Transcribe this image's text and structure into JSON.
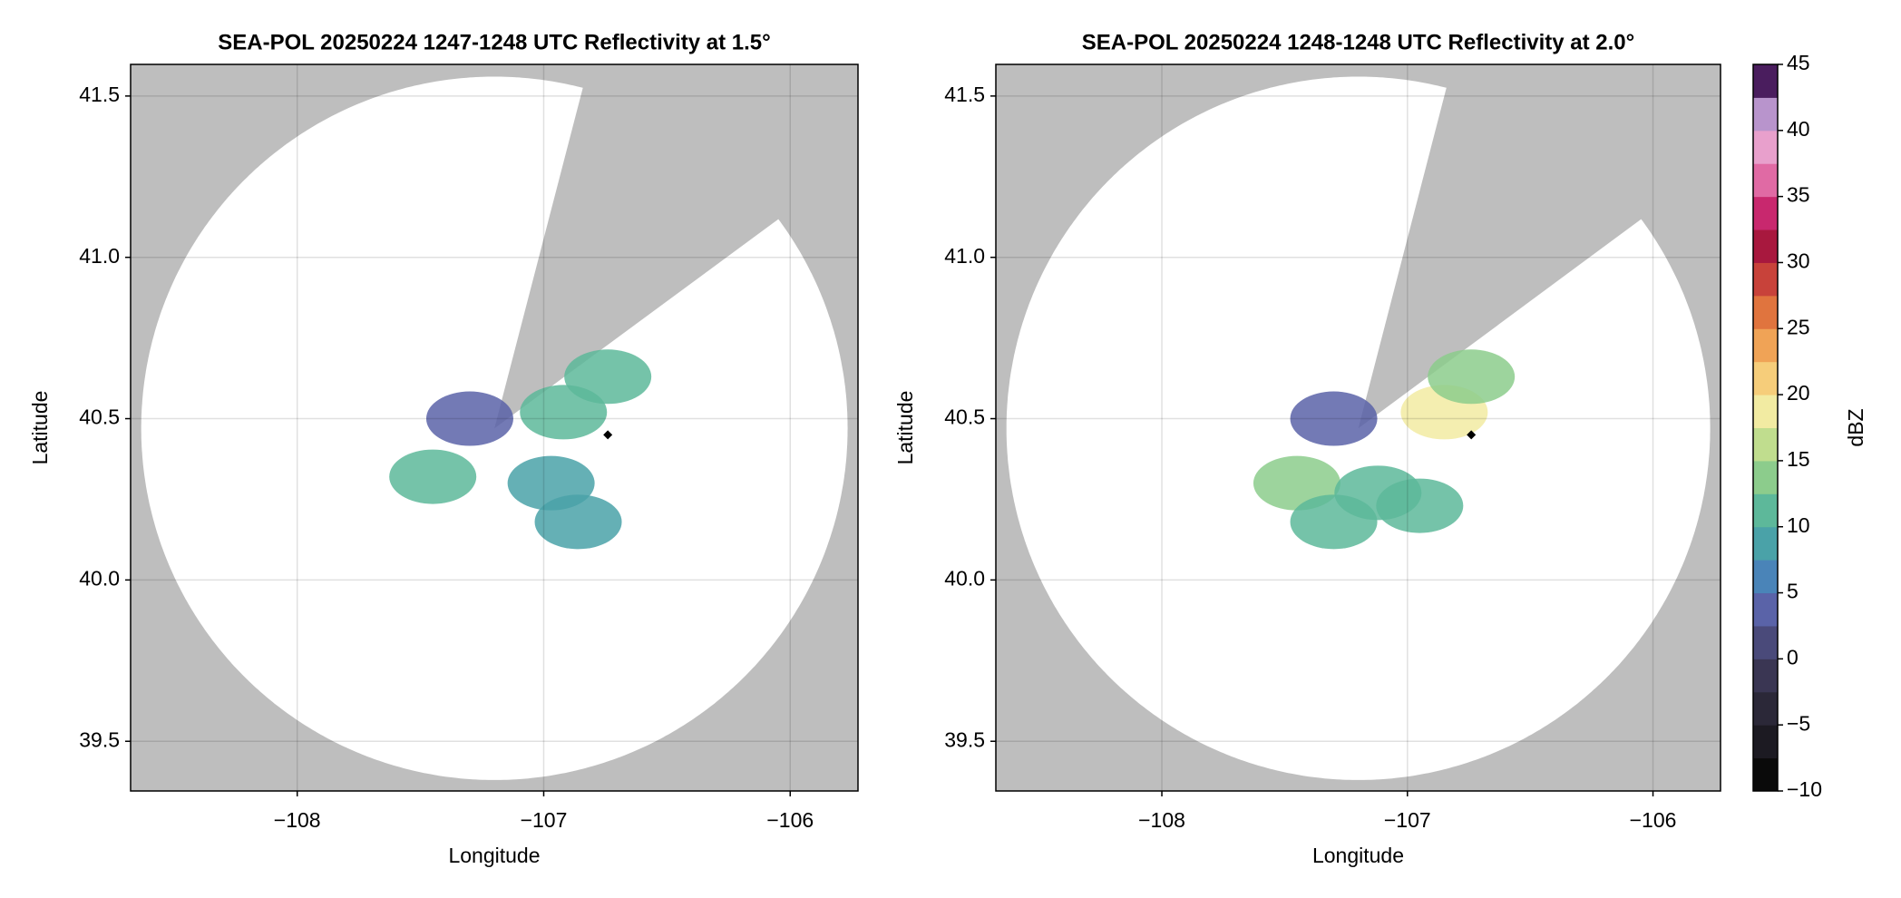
{
  "chart_data": [
    {
      "type": "radar",
      "title": "SEA-POL 20250224 1247-1248 UTC Reflectivity at 1.5°",
      "xlabel": "Longitude",
      "ylabel": "Latitude",
      "xlim": [
        -108.676,
        -105.725
      ],
      "ylim": [
        39.346,
        41.598
      ],
      "xticks": [
        {
          "value": -108,
          "label": "−108"
        },
        {
          "value": -107,
          "label": "−107"
        },
        {
          "value": -106,
          "label": "−106"
        }
      ],
      "yticks": [
        39.5,
        {
          "value": 40.0,
          "label": "40.0"
        },
        40.5,
        {
          "value": 41.0,
          "label": "41.0"
        },
        41.5
      ],
      "grid": true,
      "background": "#bebebe",
      "radar": {
        "lon": -107.2,
        "lat": 40.47
      },
      "max_range_km": 121,
      "blocked_azimuth": [
        14.5,
        53.5
      ],
      "echoes": [
        {
          "lon": -107.45,
          "lat": 40.32,
          "value": 12
        },
        {
          "lon": -107.3,
          "lat": 40.5,
          "value": 3
        },
        {
          "lon": -106.92,
          "lat": 40.52,
          "value": 12
        },
        {
          "lon": -106.97,
          "lat": 40.3,
          "value": 8
        },
        {
          "lon": -106.86,
          "lat": 40.18,
          "value": 9
        },
        {
          "lon": -106.74,
          "lat": 40.63,
          "value": 11
        }
      ],
      "marker": {
        "lon": -106.74,
        "lat": 40.45
      }
    },
    {
      "type": "radar",
      "title": "SEA-POL 20250224 1248-1248 UTC Reflectivity at 2.0°",
      "xlabel": "Longitude",
      "ylabel": "Latitude",
      "xlim": [
        -108.676,
        -105.725
      ],
      "ylim": [
        39.346,
        41.598
      ],
      "xticks": [
        {
          "value": -108,
          "label": "−108"
        },
        {
          "value": -107,
          "label": "−107"
        },
        {
          "value": -106,
          "label": "−106"
        }
      ],
      "yticks": [
        39.5,
        {
          "value": 40.0,
          "label": "40.0"
        },
        40.5,
        {
          "value": 41.0,
          "label": "41.0"
        },
        41.5
      ],
      "grid": true,
      "background": "#bebebe",
      "radar": {
        "lon": -107.2,
        "lat": 40.47
      },
      "max_range_km": 121,
      "blocked_azimuth": [
        14.5,
        53.5
      ],
      "echoes": [
        {
          "lon": -107.45,
          "lat": 40.3,
          "value": 13
        },
        {
          "lon": -107.3,
          "lat": 40.5,
          "value": 3
        },
        {
          "lon": -107.12,
          "lat": 40.27,
          "value": 10
        },
        {
          "lon": -106.95,
          "lat": 40.23,
          "value": 12
        },
        {
          "lon": -106.85,
          "lat": 40.52,
          "value": 18
        },
        {
          "lon": -106.74,
          "lat": 40.63,
          "value": 13
        },
        {
          "lon": -107.3,
          "lat": 40.18,
          "value": 10
        }
      ],
      "marker": {
        "lon": -106.74,
        "lat": 40.45
      }
    },
    {
      "type": "colorbar",
      "label": "dBZ",
      "lim": [
        -10,
        45
      ],
      "ticks": [
        {
          "value": -10,
          "label": "−10"
        },
        {
          "value": -5,
          "label": "−5"
        },
        0,
        5,
        10,
        15,
        20,
        25,
        30,
        35,
        40,
        45
      ],
      "colors": [
        "#0a0a0a",
        "#1c1a22",
        "#2b2838",
        "#3a3653",
        "#4a4a7a",
        "#5a63a8",
        "#4a84b8",
        "#4aa2a8",
        "#5db89a",
        "#8ccc8c",
        "#c0dd8e",
        "#f2eba2",
        "#f6cd7a",
        "#f0a356",
        "#e0743e",
        "#c8423a",
        "#a8183e",
        "#c8286e",
        "#e06aa4",
        "#e8a0cc",
        "#b894cc",
        "#4a1d5e"
      ]
    }
  ]
}
